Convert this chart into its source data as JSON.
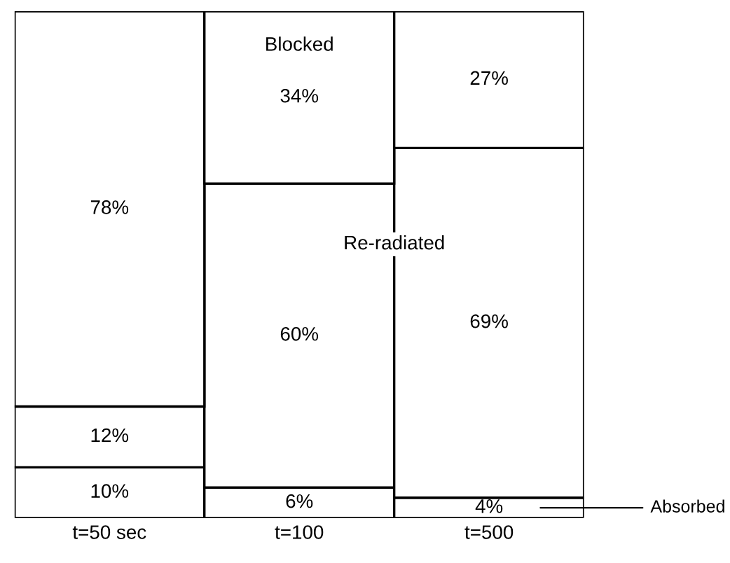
{
  "chart_data": {
    "type": "bar",
    "stacked": true,
    "categories": [
      "t=50 sec",
      "t=100",
      "t=500"
    ],
    "series": [
      {
        "name": "Absorbed",
        "color": "#ffffff",
        "values": [
          10,
          6,
          4
        ],
        "value_labels": [
          "10%",
          "6%",
          "4%"
        ]
      },
      {
        "name": "Re-radiated",
        "color": "#ffffff",
        "values": [
          12,
          60,
          69
        ],
        "value_labels": [
          "12%",
          "60%",
          "69%"
        ]
      },
      {
        "name": "Blocked",
        "color": "#ffffff",
        "values": [
          78,
          34,
          27
        ],
        "value_labels": [
          "78%",
          "34%",
          "27%"
        ]
      }
    ],
    "grid": false
  }
}
